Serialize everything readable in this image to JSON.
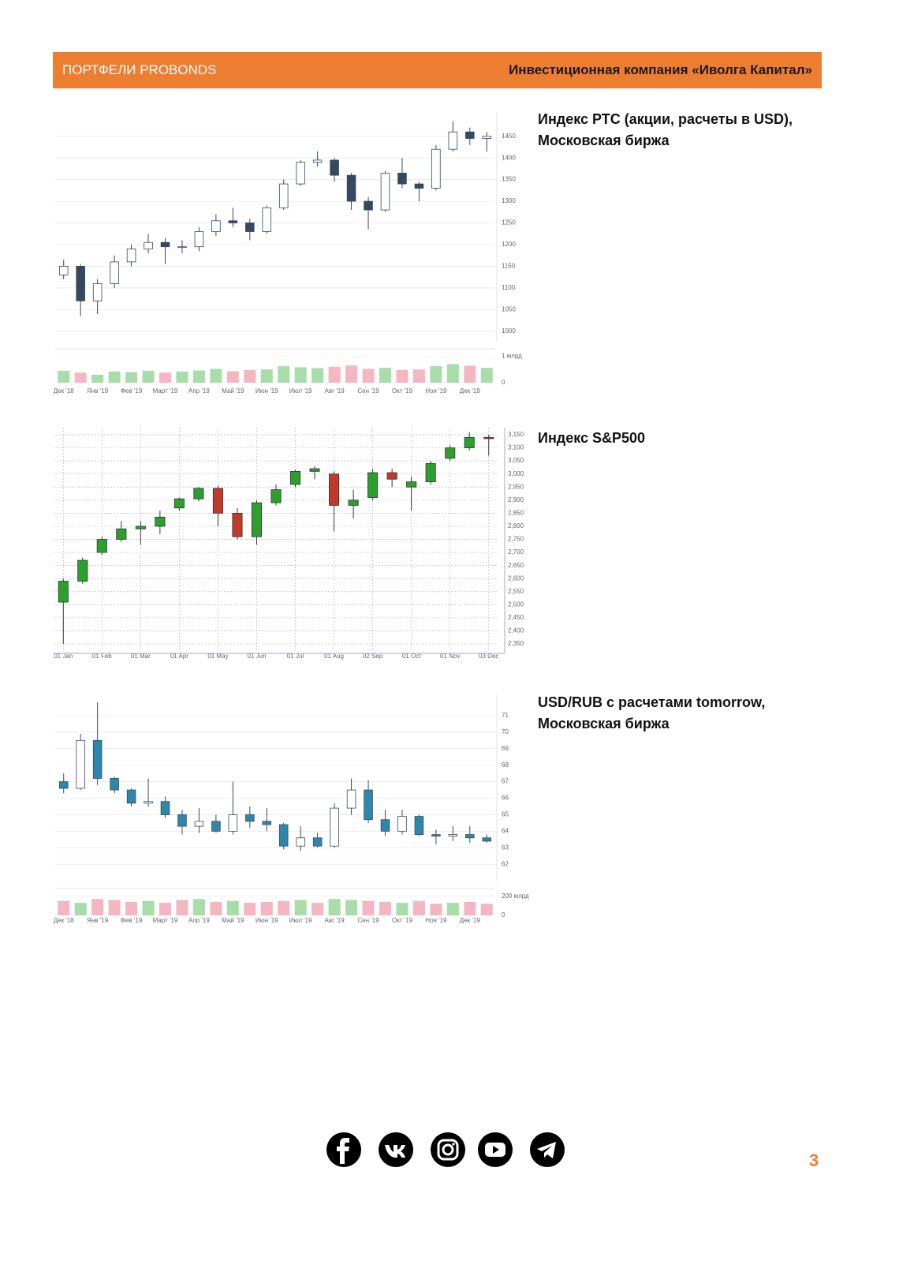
{
  "header": {
    "left": "ПОРТФЕЛИ PROBONDS",
    "right": "Инвестиционная компания «Иволга Капитал»"
  },
  "chart_data": [
    {
      "type": "candlestick",
      "title": [
        "Индекс РТС (акции, расчеты в USD),",
        "Московская биржа"
      ],
      "categories": [
        "Дек '18",
        null,
        "Янв '19",
        null,
        "Фев '19",
        null,
        "Март '19",
        null,
        "Апр '19",
        null,
        "Май '19",
        null,
        "Июн '19",
        null,
        "Июл '19",
        null,
        "Авг '19",
        null,
        "Сен '19",
        null,
        "Окт '19",
        null,
        "Ноя '19",
        null,
        "Дек '19",
        null
      ],
      "open": [
        1130,
        1150,
        1070,
        1110,
        1160,
        1190,
        1205,
        1195,
        1195,
        1230,
        1255,
        1250,
        1230,
        1285,
        1340,
        1390,
        1395,
        1360,
        1300,
        1280,
        1365,
        1340,
        1330,
        1420,
        1460,
        1445
      ],
      "high": [
        1165,
        1155,
        1120,
        1175,
        1200,
        1225,
        1215,
        1210,
        1240,
        1270,
        1285,
        1260,
        1290,
        1350,
        1395,
        1415,
        1400,
        1365,
        1310,
        1370,
        1400,
        1345,
        1430,
        1485,
        1470,
        1460
      ],
      "low": [
        1120,
        1035,
        1040,
        1100,
        1150,
        1180,
        1155,
        1180,
        1185,
        1220,
        1240,
        1210,
        1225,
        1280,
        1335,
        1380,
        1345,
        1280,
        1235,
        1275,
        1330,
        1300,
        1325,
        1415,
        1430,
        1415
      ],
      "close": [
        1150,
        1070,
        1110,
        1160,
        1190,
        1205,
        1195,
        1195,
        1230,
        1255,
        1250,
        1230,
        1285,
        1340,
        1390,
        1395,
        1360,
        1300,
        1280,
        1365,
        1340,
        1330,
        1420,
        1460,
        1445,
        1450
      ],
      "ylim": [
        985,
        1495
      ],
      "yticks": [
        1000,
        1050,
        1100,
        1150,
        1200,
        1250,
        1300,
        1350,
        1400,
        1450
      ],
      "volume": [
        450000000,
        380000000,
        300000000,
        420000000,
        400000000,
        450000000,
        380000000,
        420000000,
        460000000,
        520000000,
        430000000,
        480000000,
        500000000,
        620000000,
        580000000,
        550000000,
        600000000,
        650000000,
        520000000,
        560000000,
        480000000,
        500000000,
        620000000,
        700000000,
        640000000,
        560000000
      ],
      "volume_ylim": [
        0,
        1100000000
      ],
      "volume_yticks": [
        0,
        {
          "value": 1000000000,
          "label": "1 млрд"
        }
      ],
      "up_color": "#ffffff",
      "down_color": "#34495e",
      "stroke": "#34495e",
      "volume_up_color": "#a8dca8",
      "volume_down_color": "#f4b6c2",
      "grid": "horizontal"
    },
    {
      "type": "candlestick",
      "title": [
        "Индекс S&P500"
      ],
      "categories": [
        "01 Jan",
        null,
        "01 Feb",
        null,
        "01 Mar",
        null,
        "01 Apr",
        null,
        "01 May",
        null,
        "01 Jun",
        null,
        "01 Jul",
        null,
        "01 Aug",
        null,
        "02 Sep",
        null,
        "01 Oct",
        null,
        "01 Nov",
        null,
        "03 Dec"
      ],
      "open": [
        2510,
        2590,
        2700,
        2750,
        2790,
        2800,
        2870,
        2905,
        2945,
        2850,
        2760,
        2890,
        2960,
        3010,
        3000,
        2880,
        2910,
        3005,
        2950,
        2970,
        3060,
        3100,
        3140
      ],
      "high": [
        2600,
        2680,
        2760,
        2820,
        2820,
        2860,
        2910,
        2950,
        2955,
        2870,
        2900,
        2960,
        3015,
        3030,
        3010,
        2940,
        3020,
        3020,
        2990,
        3050,
        3110,
        3160,
        3150
      ],
      "low": [
        2350,
        2580,
        2690,
        2740,
        2730,
        2770,
        2860,
        2895,
        2800,
        2750,
        2730,
        2880,
        2950,
        2980,
        2780,
        2830,
        2900,
        2950,
        2860,
        2960,
        3050,
        3090,
        3070
      ],
      "close": [
        2590,
        2670,
        2750,
        2790,
        2800,
        2835,
        2905,
        2945,
        2850,
        2760,
        2890,
        2940,
        3010,
        3020,
        2880,
        2900,
        3005,
        2980,
        2970,
        3040,
        3100,
        3140,
        3135
      ],
      "ylim": [
        2320,
        3165
      ],
      "yticks": [
        {
          "value": 2350,
          "label": "2,350"
        },
        {
          "value": 2400,
          "label": "2,400"
        },
        {
          "value": 2450,
          "label": "2,450"
        },
        {
          "value": 2500,
          "label": "2,500"
        },
        {
          "value": 2550,
          "label": "2,550"
        },
        {
          "value": 2600,
          "label": "2,600"
        },
        {
          "value": 2650,
          "label": "2,650"
        },
        {
          "value": 2700,
          "label": "2,700"
        },
        {
          "value": 2750,
          "label": "2,750"
        },
        {
          "value": 2800,
          "label": "2,800"
        },
        {
          "value": 2850,
          "label": "2,850"
        },
        {
          "value": 2900,
          "label": "2,900"
        },
        {
          "value": 2950,
          "label": "2,950"
        },
        {
          "value": 3000,
          "label": "3,000"
        },
        {
          "value": 3050,
          "label": "3,050"
        },
        {
          "value": 3100,
          "label": "3,100"
        },
        {
          "value": 3150,
          "label": "3,150"
        }
      ],
      "up_color": "#2ca02c",
      "down_color": "#c0392b",
      "stroke": "#333333",
      "grid": "both"
    },
    {
      "type": "candlestick",
      "title": [
        "USD/RUB с расчетами tomorrow,",
        "Московская биржа"
      ],
      "categories": [
        "Дек '18",
        null,
        "Янв '19",
        null,
        "Фев '19",
        null,
        "Март '19",
        null,
        "Апр '19",
        null,
        "Май '19",
        null,
        "Июн '19",
        null,
        "Июл '19",
        null,
        "Авг '19",
        null,
        "Сен '19",
        null,
        "Окт '19",
        null,
        "Ноя '19",
        null,
        "Дек '19",
        null
      ],
      "open": [
        67.0,
        66.6,
        69.5,
        67.2,
        66.5,
        65.7,
        65.8,
        65.0,
        64.3,
        64.6,
        64.0,
        65.0,
        64.6,
        64.4,
        63.1,
        63.6,
        63.1,
        65.4,
        66.5,
        64.7,
        64.0,
        64.9,
        63.8,
        63.7,
        63.8,
        63.6
      ],
      "high": [
        67.5,
        69.9,
        71.8,
        67.3,
        66.6,
        67.2,
        66.1,
        65.3,
        65.4,
        65.0,
        67.0,
        65.5,
        65.4,
        64.5,
        64.3,
        63.9,
        65.7,
        67.2,
        67.1,
        65.3,
        65.3,
        65.0,
        64.1,
        64.3,
        64.3,
        63.8
      ],
      "low": [
        66.3,
        66.5,
        66.8,
        66.3,
        65.5,
        65.5,
        64.8,
        63.8,
        63.9,
        63.9,
        63.8,
        64.2,
        64.0,
        62.9,
        62.8,
        63.0,
        63.0,
        65.0,
        64.5,
        63.7,
        63.8,
        63.7,
        63.2,
        63.4,
        63.3,
        63.3
      ],
      "close": [
        66.6,
        69.5,
        67.2,
        66.5,
        65.7,
        65.8,
        65.0,
        64.3,
        64.6,
        64.0,
        65.0,
        64.6,
        64.4,
        63.1,
        63.6,
        63.1,
        65.4,
        66.5,
        64.7,
        64.0,
        64.9,
        63.8,
        63.7,
        63.8,
        63.6,
        63.4
      ],
      "ylim": [
        61.2,
        72
      ],
      "yticks": [
        62,
        63,
        64,
        65,
        66,
        67,
        68,
        69,
        70,
        71
      ],
      "volume": [
        150000000000,
        130000000000,
        170000000000,
        160000000000,
        140000000000,
        150000000000,
        130000000000,
        160000000000,
        170000000000,
        140000000000,
        150000000000,
        130000000000,
        140000000000,
        150000000000,
        160000000000,
        130000000000,
        170000000000,
        160000000000,
        150000000000,
        140000000000,
        130000000000,
        150000000000,
        120000000000,
        130000000000,
        140000000000,
        120000000000
      ],
      "volume_ylim": [
        0,
        230000000000
      ],
      "volume_yticks": [
        0,
        {
          "value": 200000000000,
          "label": "200 млрд"
        }
      ],
      "up_color": "#ffffff",
      "down_color": "#2e86ab",
      "stroke": "#3a4a5a",
      "volume_up_color": "#a8dca8",
      "volume_down_color": "#f4b6c2",
      "grid": "horizontal"
    }
  ],
  "page_number": "3"
}
